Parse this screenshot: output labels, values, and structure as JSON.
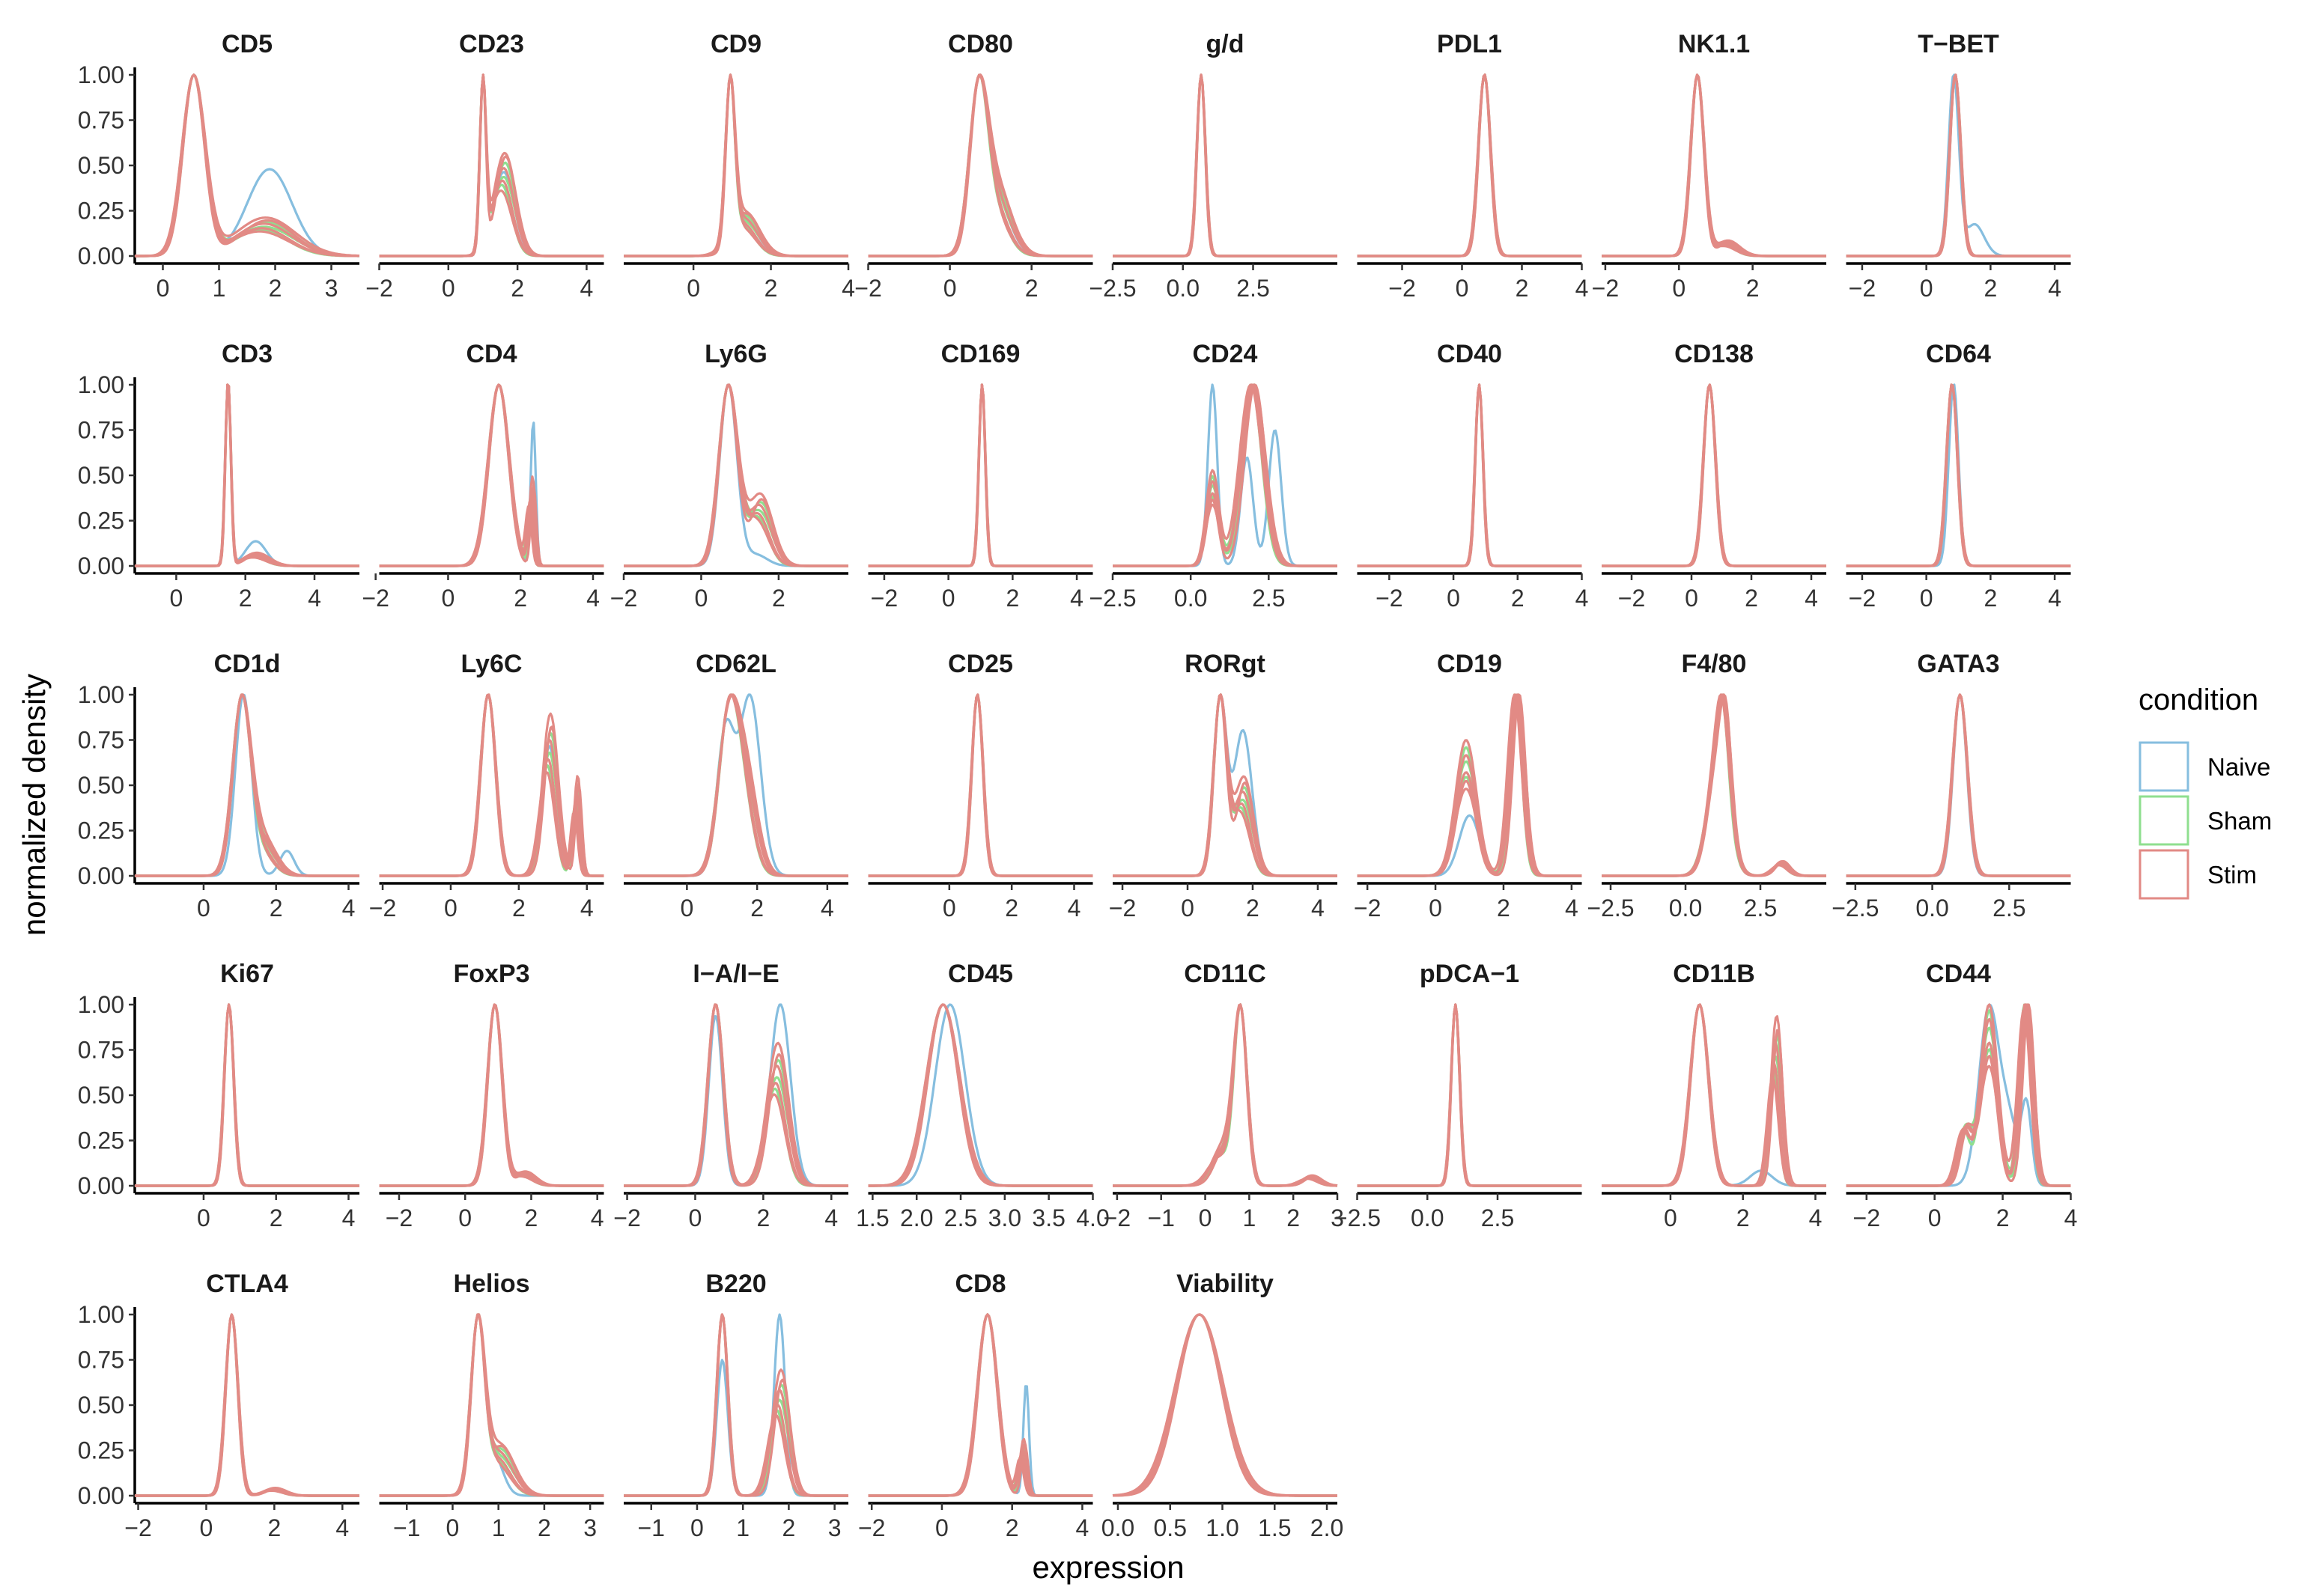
{
  "chart_data": {
    "type": "line",
    "xlabel": "expression",
    "ylabel": "normalized density",
    "y_ticks": [
      "0.00",
      "0.25",
      "0.50",
      "0.75",
      "1.00"
    ],
    "legend": {
      "title": "condition",
      "position": "right",
      "entries": [
        {
          "name": "Naive",
          "color": "#86bedf"
        },
        {
          "name": "Sham",
          "color": "#8fdf8f"
        },
        {
          "name": "Stim",
          "color": "#e28a85"
        }
      ]
    },
    "panels": [
      {
        "title": "CD5",
        "xlim": [
          -0.5,
          3.5
        ],
        "xticks": [
          0,
          1,
          2,
          3
        ],
        "peaks": [
          {
            "mu": 0.55,
            "w": 0.28,
            "sd": 0.2
          },
          {
            "mu": 1.8,
            "w": 0.12,
            "sd": 0.5
          }
        ],
        "naive": [
          {
            "mu": 0.55,
            "w": 0.25,
            "sd": 0.2
          },
          {
            "mu": 1.9,
            "w": 0.24,
            "sd": 0.4
          }
        ]
      },
      {
        "title": "CD23",
        "xlim": [
          -2,
          4.5
        ],
        "xticks": [
          -2,
          0,
          2,
          4
        ],
        "peaks": [
          {
            "mu": 1.0,
            "w": 0.2,
            "sd": 0.09
          },
          {
            "mu": 1.6,
            "w": 0.33,
            "sd": 0.3
          }
        ]
      },
      {
        "title": "CD9",
        "xlim": [
          -1.8,
          4
        ],
        "xticks": [
          0,
          2,
          4
        ],
        "peaks": [
          {
            "mu": 0.95,
            "w": 0.3,
            "sd": 0.12
          },
          {
            "mu": 1.3,
            "w": 0.2,
            "sd": 0.35
          }
        ]
      },
      {
        "title": "CD80",
        "xlim": [
          -2,
          3.5
        ],
        "xticks": [
          -2,
          0,
          2
        ],
        "peaks": [
          {
            "mu": 0.7,
            "w": 0.4,
            "sd": 0.22
          },
          {
            "mu": 1.1,
            "w": 0.25,
            "sd": 0.35
          }
        ]
      },
      {
        "title": "g/d",
        "xlim": [
          -2.5,
          5.5
        ],
        "xticks": [
          -2.5,
          0.0,
          2.5
        ],
        "peaks": [
          {
            "mu": 0.65,
            "w": 0.3,
            "sd": 0.15
          }
        ]
      },
      {
        "title": "PDL1",
        "xlim": [
          -3.5,
          4
        ],
        "xticks": [
          -2,
          0,
          2,
          4
        ],
        "peaks": [
          {
            "mu": 0.75,
            "w": 0.35,
            "sd": 0.2
          }
        ]
      },
      {
        "title": "NK1.1",
        "xlim": [
          -2.1,
          4
        ],
        "xticks": [
          -2,
          0,
          2
        ],
        "peaks": [
          {
            "mu": 0.5,
            "w": 0.35,
            "sd": 0.18
          },
          {
            "mu": 1.3,
            "w": 0.04,
            "sd": 0.3
          }
        ]
      },
      {
        "title": "T−BET",
        "xlim": [
          -2.5,
          4.5
        ],
        "xticks": [
          -2,
          0,
          2,
          4
        ],
        "peaks": [
          {
            "mu": 0.9,
            "w": 0.3,
            "sd": 0.17
          }
        ],
        "naive": [
          {
            "mu": 0.85,
            "w": 0.3,
            "sd": 0.16
          },
          {
            "mu": 1.5,
            "w": 0.1,
            "sd": 0.3
          }
        ]
      },
      {
        "title": "CD3",
        "xlim": [
          -1.2,
          5.3
        ],
        "xticks": [
          0,
          2,
          4
        ],
        "peaks": [
          {
            "mu": 1.5,
            "w": 0.2,
            "sd": 0.08
          },
          {
            "mu": 2.3,
            "w": 0.05,
            "sd": 0.35
          }
        ],
        "naive": [
          {
            "mu": 1.5,
            "w": 0.2,
            "sd": 0.08
          },
          {
            "mu": 2.3,
            "w": 0.1,
            "sd": 0.3
          }
        ]
      },
      {
        "title": "CD4",
        "xlim": [
          -1.9,
          4.3
        ],
        "xticks": [
          -2,
          0,
          2,
          4
        ],
        "peaks": [
          {
            "mu": 1.4,
            "w": 0.45,
            "sd": 0.28
          },
          {
            "mu": 2.3,
            "w": 0.05,
            "sd": 0.08
          }
        ],
        "naive": [
          {
            "mu": 1.4,
            "w": 0.45,
            "sd": 0.28
          },
          {
            "mu": 2.35,
            "w": 0.09,
            "sd": 0.07
          }
        ]
      },
      {
        "title": "Ly6G",
        "xlim": [
          -2,
          3.8
        ],
        "xticks": [
          -2,
          0,
          2
        ],
        "peaks": [
          {
            "mu": 0.7,
            "w": 0.35,
            "sd": 0.24
          },
          {
            "mu": 1.5,
            "w": 0.14,
            "sd": 0.3
          }
        ],
        "naive": [
          {
            "mu": 0.7,
            "w": 0.35,
            "sd": 0.22
          },
          {
            "mu": 1.4,
            "w": 0.03,
            "sd": 0.3
          }
        ]
      },
      {
        "title": "CD169",
        "xlim": [
          -2.5,
          4.5
        ],
        "xticks": [
          -2,
          0,
          2,
          4
        ],
        "peaks": [
          {
            "mu": 1.05,
            "w": 0.3,
            "sd": 0.1
          }
        ]
      },
      {
        "title": "CD24",
        "xlim": [
          -2.5,
          4.7
        ],
        "xticks": [
          -2.5,
          0.0,
          2.5
        ],
        "peaks": [
          {
            "mu": 0.7,
            "w": 0.12,
            "sd": 0.2
          },
          {
            "mu": 2.0,
            "w": 0.5,
            "sd": 0.35
          }
        ],
        "naive": [
          {
            "mu": 0.7,
            "w": 0.25,
            "sd": 0.15
          },
          {
            "mu": 1.8,
            "w": 0.2,
            "sd": 0.2
          },
          {
            "mu": 2.7,
            "w": 0.25,
            "sd": 0.2
          }
        ]
      },
      {
        "title": "CD40",
        "xlim": [
          -3,
          4
        ],
        "xticks": [
          -2,
          0,
          2,
          4
        ],
        "peaks": [
          {
            "mu": 0.8,
            "w": 0.3,
            "sd": 0.12
          }
        ]
      },
      {
        "title": "CD138",
        "xlim": [
          -3,
          4.5
        ],
        "xticks": [
          -2,
          0,
          2,
          4
        ],
        "peaks": [
          {
            "mu": 0.6,
            "w": 0.35,
            "sd": 0.2
          }
        ]
      },
      {
        "title": "CD64",
        "xlim": [
          -2.5,
          4.5
        ],
        "xticks": [
          -2,
          0,
          2,
          4
        ],
        "peaks": [
          {
            "mu": 0.8,
            "w": 0.3,
            "sd": 0.17
          }
        ],
        "naive": [
          {
            "mu": 0.85,
            "w": 0.3,
            "sd": 0.15
          }
        ]
      },
      {
        "title": "CD1d",
        "xlim": [
          -1.9,
          4.3
        ],
        "xticks": [
          0,
          2,
          4
        ],
        "peaks": [
          {
            "mu": 1.05,
            "w": 0.4,
            "sd": 0.25
          },
          {
            "mu": 1.6,
            "w": 0.1,
            "sd": 0.35
          }
        ],
        "naive": [
          {
            "mu": 1.1,
            "w": 0.4,
            "sd": 0.22
          },
          {
            "mu": 2.3,
            "w": 0.05,
            "sd": 0.2
          }
        ]
      },
      {
        "title": "Ly6C",
        "xlim": [
          -2.1,
          4.5
        ],
        "xticks": [
          -2,
          0,
          2,
          4
        ],
        "peaks": [
          {
            "mu": 1.1,
            "w": 0.35,
            "sd": 0.22
          },
          {
            "mu": 2.9,
            "w": 0.25,
            "sd": 0.22
          },
          {
            "mu": 3.7,
            "w": 0.07,
            "sd": 0.1
          }
        ]
      },
      {
        "title": "CD62L",
        "xlim": [
          -1.8,
          4.6
        ],
        "xticks": [
          0,
          2,
          4
        ],
        "peaks": [
          {
            "mu": 1.2,
            "w": 0.45,
            "sd": 0.3
          },
          {
            "mu": 1.7,
            "w": 0.2,
            "sd": 0.3
          }
        ],
        "naive": [
          {
            "mu": 1.1,
            "w": 0.3,
            "sd": 0.25
          },
          {
            "mu": 1.8,
            "w": 0.45,
            "sd": 0.3
          }
        ]
      },
      {
        "title": "CD25",
        "xlim": [
          -2.6,
          4.6
        ],
        "xticks": [
          0,
          2,
          4
        ],
        "peaks": [
          {
            "mu": 0.9,
            "w": 0.3,
            "sd": 0.18
          }
        ]
      },
      {
        "title": "RORgt",
        "xlim": [
          -2.3,
          4.6
        ],
        "xticks": [
          -2,
          0,
          2,
          4
        ],
        "peaks": [
          {
            "mu": 1.0,
            "w": 0.35,
            "sd": 0.2
          },
          {
            "mu": 1.7,
            "w": 0.22,
            "sd": 0.28
          }
        ],
        "naive": [
          {
            "mu": 1.0,
            "w": 0.3,
            "sd": 0.2
          },
          {
            "mu": 1.7,
            "w": 0.35,
            "sd": 0.28
          }
        ]
      },
      {
        "title": "CD19",
        "xlim": [
          -2.3,
          4.3
        ],
        "xticks": [
          -2,
          0,
          2,
          4
        ],
        "peaks": [
          {
            "mu": 0.9,
            "w": 0.45,
            "sd": 0.3
          },
          {
            "mu": 2.4,
            "w": 0.5,
            "sd": 0.2
          }
        ],
        "naive": [
          {
            "mu": 1.0,
            "w": 0.25,
            "sd": 0.3
          },
          {
            "mu": 2.4,
            "w": 0.5,
            "sd": 0.2
          }
        ]
      },
      {
        "title": "F4/80",
        "xlim": [
          -2.8,
          4.7
        ],
        "xticks": [
          -2.5,
          0.0,
          2.5
        ],
        "peaks": [
          {
            "mu": 1.1,
            "w": 0.5,
            "sd": 0.35
          },
          {
            "mu": 1.3,
            "w": 0.2,
            "sd": 0.2
          },
          {
            "mu": 3.2,
            "w": 0.04,
            "sd": 0.25
          }
        ]
      },
      {
        "title": "GATA3",
        "xlim": [
          -2.8,
          4.5
        ],
        "xticks": [
          -2.5,
          0.0,
          2.5
        ],
        "peaks": [
          {
            "mu": 0.9,
            "w": 0.35,
            "sd": 0.24
          }
        ],
        "naive": [
          {
            "mu": 0.9,
            "w": 0.35,
            "sd": 0.22
          }
        ]
      },
      {
        "title": "Ki67",
        "xlim": [
          -1.9,
          4.3
        ],
        "xticks": [
          0,
          2,
          4
        ],
        "peaks": [
          {
            "mu": 0.7,
            "w": 0.3,
            "sd": 0.13
          }
        ]
      },
      {
        "title": "FoxP3",
        "xlim": [
          -2.6,
          4.2
        ],
        "xticks": [
          -2,
          0,
          2,
          4
        ],
        "peaks": [
          {
            "mu": 0.9,
            "w": 0.35,
            "sd": 0.22
          },
          {
            "mu": 1.8,
            "w": 0.03,
            "sd": 0.3
          }
        ]
      },
      {
        "title": "I−A/I−E",
        "xlim": [
          -2.1,
          4.5
        ],
        "xticks": [
          -2,
          0,
          2,
          4
        ],
        "peaks": [
          {
            "mu": 0.6,
            "w": 0.35,
            "sd": 0.22
          },
          {
            "mu": 2.4,
            "w": 0.3,
            "sd": 0.3
          }
        ],
        "naive": [
          {
            "mu": 0.6,
            "w": 0.25,
            "sd": 0.2
          },
          {
            "mu": 2.5,
            "w": 0.4,
            "sd": 0.3
          }
        ]
      },
      {
        "title": "CD45",
        "xlim": [
          1.45,
          4.0
        ],
        "xticks": [
          1.5,
          2.0,
          2.5,
          3.0,
          3.5,
          4.0
        ],
        "peaks": [
          {
            "mu": 2.3,
            "w": 0.5,
            "sd": 0.18
          }
        ],
        "naive": [
          {
            "mu": 2.38,
            "w": 0.5,
            "sd": 0.17
          }
        ]
      },
      {
        "title": "CD11C",
        "xlim": [
          -2.1,
          3.0
        ],
        "xticks": [
          -2,
          -1,
          0,
          1,
          2,
          3
        ],
        "peaks": [
          {
            "mu": 0.8,
            "w": 0.3,
            "sd": 0.15
          },
          {
            "mu": 0.4,
            "w": 0.1,
            "sd": 0.25
          },
          {
            "mu": 2.4,
            "w": 0.02,
            "sd": 0.2
          }
        ]
      },
      {
        "title": "pDCA−1",
        "xlim": [
          -2.5,
          5.5
        ],
        "xticks": [
          -2.5,
          0.0,
          2.5
        ],
        "peaks": [
          {
            "mu": 1.0,
            "w": 0.3,
            "sd": 0.15
          }
        ]
      },
      {
        "title": "CD11B",
        "xlim": [
          -1.9,
          4.3
        ],
        "xticks": [
          0,
          2,
          4
        ],
        "peaks": [
          {
            "mu": 0.8,
            "w": 0.4,
            "sd": 0.25
          },
          {
            "mu": 2.9,
            "w": 0.18,
            "sd": 0.15
          }
        ],
        "naive": [
          {
            "mu": 0.8,
            "w": 0.4,
            "sd": 0.25
          },
          {
            "mu": 2.5,
            "w": 0.04,
            "sd": 0.3
          }
        ]
      },
      {
        "title": "CD44",
        "xlim": [
          -2.6,
          4.0
        ],
        "xticks": [
          -2,
          0,
          2,
          4
        ],
        "peaks": [
          {
            "mu": 1.6,
            "w": 0.4,
            "sd": 0.25
          },
          {
            "mu": 2.7,
            "w": 0.35,
            "sd": 0.18
          },
          {
            "mu": 0.9,
            "w": 0.12,
            "sd": 0.2
          }
        ],
        "naive": [
          {
            "mu": 1.6,
            "w": 0.45,
            "sd": 0.3
          },
          {
            "mu": 2.2,
            "w": 0.12,
            "sd": 0.25
          },
          {
            "mu": 2.7,
            "w": 0.1,
            "sd": 0.15
          }
        ]
      },
      {
        "title": "CTLA4",
        "xlim": [
          -2.1,
          4.5
        ],
        "xticks": [
          -2,
          0,
          2,
          4
        ],
        "peaks": [
          {
            "mu": 0.75,
            "w": 0.35,
            "sd": 0.18
          },
          {
            "mu": 2.0,
            "w": 0.02,
            "sd": 0.3
          }
        ]
      },
      {
        "title": "Helios",
        "xlim": [
          -1.6,
          3.3
        ],
        "xticks": [
          -1,
          0,
          1,
          2,
          3
        ],
        "peaks": [
          {
            "mu": 0.55,
            "w": 0.4,
            "sd": 0.15
          },
          {
            "mu": 1.0,
            "w": 0.2,
            "sd": 0.3
          }
        ],
        "naive": [
          {
            "mu": 0.55,
            "w": 0.4,
            "sd": 0.15
          },
          {
            "mu": 0.9,
            "w": 0.12,
            "sd": 0.2
          }
        ]
      },
      {
        "title": "B220",
        "xlim": [
          -1.6,
          3.3
        ],
        "xticks": [
          -1,
          0,
          1,
          2,
          3
        ],
        "peaks": [
          {
            "mu": 0.55,
            "w": 0.3,
            "sd": 0.12
          },
          {
            "mu": 1.8,
            "w": 0.25,
            "sd": 0.18
          }
        ],
        "naive": [
          {
            "mu": 0.55,
            "w": 0.3,
            "sd": 0.12
          },
          {
            "mu": 1.8,
            "w": 0.4,
            "sd": 0.12
          }
        ]
      },
      {
        "title": "CD8",
        "xlim": [
          -2.1,
          4.3
        ],
        "xticks": [
          -2,
          0,
          2,
          4
        ],
        "peaks": [
          {
            "mu": 1.3,
            "w": 0.45,
            "sd": 0.28
          },
          {
            "mu": 2.3,
            "w": 0.04,
            "sd": 0.1
          }
        ],
        "naive": [
          {
            "mu": 1.3,
            "w": 0.45,
            "sd": 0.28
          },
          {
            "mu": 2.4,
            "w": 0.08,
            "sd": 0.08
          }
        ]
      },
      {
        "title": "Viability",
        "xlim": [
          -0.05,
          2.1
        ],
        "xticks": [
          "0.0",
          "0.5",
          "1.0",
          "1.5",
          "2.0"
        ],
        "peaks": [
          {
            "mu": 0.78,
            "w": 0.5,
            "sd": 0.22
          }
        ]
      }
    ]
  }
}
